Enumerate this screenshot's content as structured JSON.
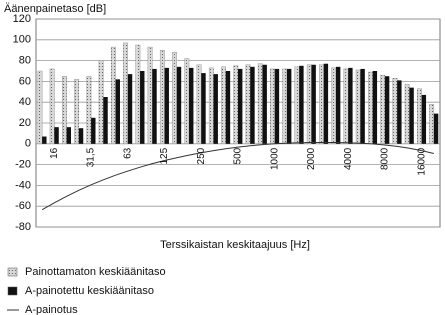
{
  "chart_data": {
    "type": "bar",
    "y_label": "Äänenpainetaso [dB]",
    "x_label": "Terssikaistan keskitaajuus [Hz]",
    "categories": [
      null,
      "16",
      null,
      null,
      "31,5",
      null,
      null,
      "63",
      null,
      null,
      "125",
      null,
      null,
      "250",
      null,
      null,
      "500",
      null,
      null,
      "1000",
      null,
      null,
      "2000",
      null,
      null,
      "4000",
      null,
      null,
      "8000",
      null,
      null,
      "16000",
      null
    ],
    "series": [
      {
        "name": "Painottamaton keskiäänitaso",
        "type": "bar",
        "color": "#c4c4c4",
        "values": [
          70,
          72,
          65,
          62,
          65,
          80,
          93,
          97,
          95,
          93,
          90,
          88,
          82,
          76,
          73,
          74,
          75,
          76,
          77,
          72,
          72,
          74,
          76,
          76,
          73,
          72,
          71,
          69,
          66,
          63,
          57,
          53,
          38
        ]
      },
      {
        "name": "A-painotettu keskiäänitaso",
        "type": "bar",
        "color": "#111111",
        "values": [
          7,
          16,
          16,
          15,
          25,
          45,
          62,
          67,
          70,
          72,
          73,
          74,
          73,
          68,
          67,
          70,
          72,
          74,
          76,
          72,
          72,
          75,
          76,
          77,
          74,
          73,
          72,
          70,
          65,
          61,
          54,
          47,
          29
        ]
      },
      {
        "name": "A-painotus",
        "type": "line",
        "color": "#333333",
        "values": [
          -63.4,
          -56.7,
          -50.5,
          -44.7,
          -39.4,
          -34.6,
          -30.2,
          -26.2,
          -22.5,
          -19.1,
          -16.1,
          -13.4,
          -10.9,
          -8.6,
          -6.6,
          -4.8,
          -3.2,
          -1.9,
          -0.8,
          0,
          0.6,
          1.0,
          1.2,
          1.3,
          1.2,
          1.0,
          0.5,
          -0.1,
          -1.1,
          -2.5,
          -4.3,
          -6.6,
          -9.3
        ]
      }
    ],
    "ylim": [
      -80,
      120
    ],
    "yticks": [
      -80,
      -60,
      -40,
      -20,
      0,
      20,
      40,
      60,
      80,
      100,
      120
    ],
    "grid": true
  }
}
